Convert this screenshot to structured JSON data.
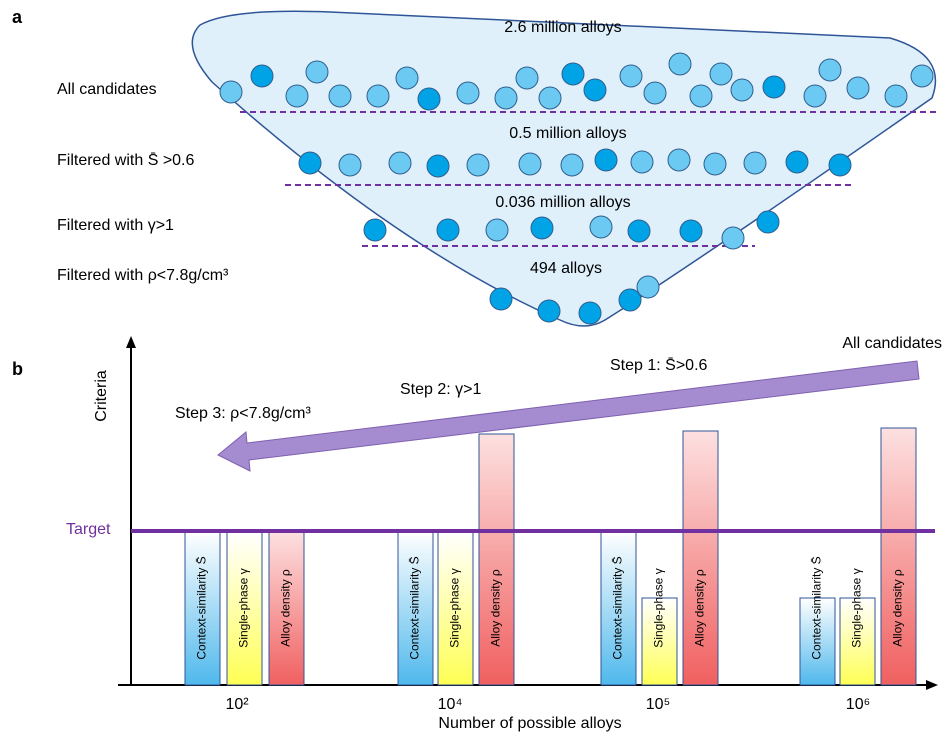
{
  "panel_a": {
    "label": "a",
    "levels": [
      {
        "count": "2.6 million alloys",
        "filter": "All candidates"
      },
      {
        "count": "0.5 million alloys",
        "filter": "Filtered with S̄ >0.6"
      },
      {
        "count": "0.036 million alloys",
        "filter": "Filtered with γ>1"
      },
      {
        "count": "494 alloys",
        "filter": "Filtered with ρ<7.8g/cm³"
      }
    ]
  },
  "panel_b": {
    "label": "b",
    "y_axis_label": "Criteria",
    "x_axis_label": "Number of possible alloys",
    "target_label": "Target",
    "arrow_start": "All candidates",
    "steps": [
      "Step 1: S̄>0.6",
      "Step 2: γ>1",
      "Step 3: ρ<7.8g/cm³"
    ],
    "groups": [
      {
        "tick": "10²",
        "bars": [
          "Context-similarity S̄",
          "Single-phase γ",
          "Alloy density ρ"
        ]
      },
      {
        "tick": "10⁴",
        "bars": [
          "Context-similarity S̄",
          "Single-phase γ",
          "Alloy density ρ"
        ]
      },
      {
        "tick": "10⁵",
        "bars": [
          "Context-similarity S̄",
          "Single-phase γ",
          "Alloy density ρ"
        ]
      },
      {
        "tick": "10⁶",
        "bars": [
          "Context-similarity S̄",
          "Single-phase γ",
          "Alloy density ρ"
        ]
      }
    ]
  }
}
